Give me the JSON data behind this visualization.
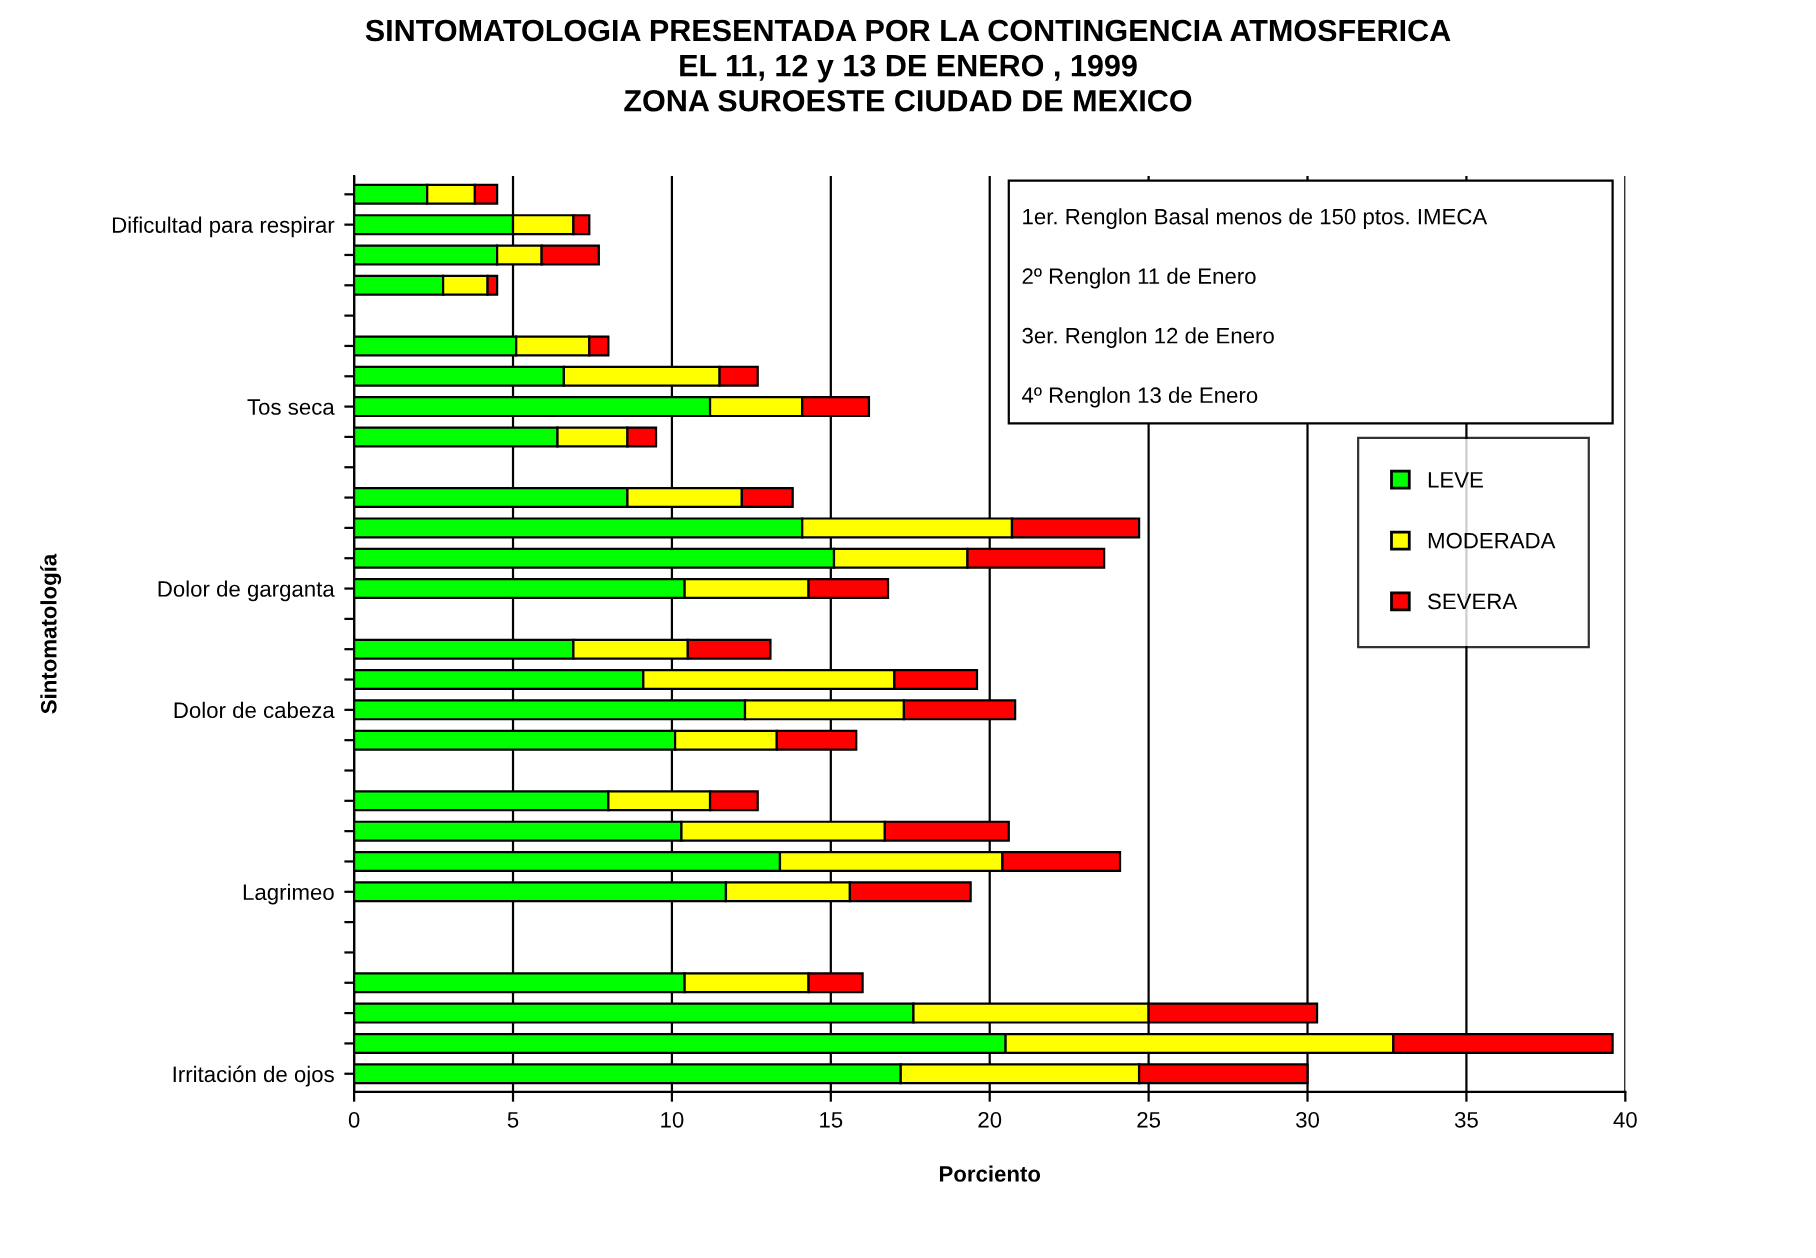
{
  "chart_data": {
    "type": "bar",
    "orientation": "horizontal",
    "stacked": true,
    "title": "SINTOMATOLOGIA PRESENTADA POR LA CONTINGENCIA ATMOSFERICA\nEL 11, 12 y 13 DE ENERO , 1999\nZONA SUROESTE CIUDAD DE MEXICO",
    "xlabel": "Porciento",
    "ylabel": "Sintomatología",
    "categories": [
      null,
      "Dificultad para respirar",
      null,
      null,
      null,
      null,
      null,
      "Tos seca",
      null,
      null,
      null,
      null,
      null,
      "Dolor de garganta",
      null,
      null,
      null,
      "Dolor de cabeza",
      null,
      null,
      null,
      null,
      null,
      "Lagrimeo",
      null,
      null,
      null,
      null,
      null,
      "Irritación de ojos"
    ],
    "series": [
      {
        "name": "LEVE",
        "color": "#00ff00",
        "values": [
          2.3,
          5.0,
          4.5,
          2.8,
          null,
          5.1,
          6.6,
          11.2,
          6.4,
          null,
          8.6,
          14.1,
          15.1,
          10.4,
          null,
          6.9,
          9.1,
          12.3,
          10.1,
          null,
          8.0,
          10.3,
          13.4,
          11.7,
          null,
          null,
          10.4,
          17.6,
          20.5,
          17.2
        ]
      },
      {
        "name": "MODERADA",
        "color": "#ffff00",
        "values": [
          1.5,
          1.9,
          1.4,
          1.4,
          null,
          2.3,
          4.9,
          2.9,
          2.2,
          null,
          3.6,
          6.6,
          4.2,
          3.9,
          null,
          3.6,
          7.9,
          5.0,
          3.2,
          null,
          3.2,
          6.4,
          7.0,
          3.9,
          null,
          null,
          3.9,
          7.4,
          12.2,
          7.5
        ]
      },
      {
        "name": "SEVERA",
        "color": "#ff0000",
        "values": [
          0.7,
          0.5,
          1.8,
          0.3,
          null,
          0.6,
          1.2,
          2.1,
          0.9,
          null,
          1.6,
          4.0,
          4.3,
          2.5,
          null,
          2.6,
          2.6,
          3.5,
          2.5,
          null,
          1.5,
          3.9,
          3.7,
          3.8,
          null,
          null,
          1.7,
          5.3,
          6.9,
          5.3
        ]
      }
    ],
    "xlim": [
      0,
      40
    ],
    "xticks": [
      0,
      5,
      10,
      15,
      20,
      25,
      30,
      35,
      40
    ],
    "grid": "x",
    "legend": "center right",
    "annotations": [
      "1er. Renglon Basal menos de 150 ptos. IMECA",
      "2º Renglon 11 de Enero",
      "3er. Renglon 12 de Enero",
      "4º Renglon 13 de Enero"
    ]
  }
}
